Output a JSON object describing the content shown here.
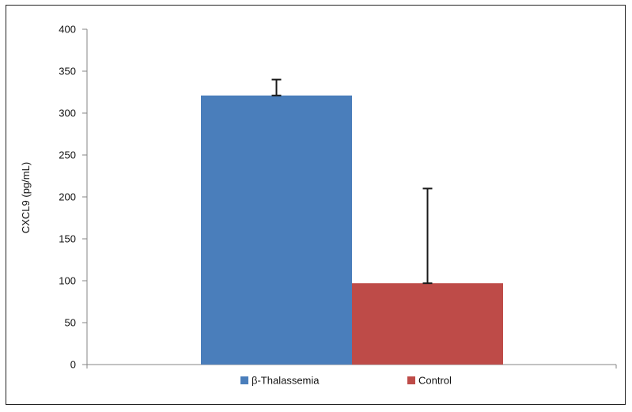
{
  "chart_data": {
    "type": "bar",
    "title": "",
    "xlabel": "",
    "ylabel": "CXCL9 (pg/mL)",
    "ylim": [
      0,
      400
    ],
    "yticks": [
      0,
      50,
      100,
      150,
      200,
      250,
      300,
      350,
      400
    ],
    "series": [
      {
        "name": "β-Thalassemia",
        "color": "#4a7ebb",
        "values": [
          321
        ],
        "error": {
          "lower": 0,
          "upper": 19
        }
      },
      {
        "name": "Control",
        "color": "#be4b48",
        "values": [
          97
        ],
        "error": {
          "lower": 0,
          "upper": 113
        }
      }
    ],
    "legend": {
      "placement": "bottom-center",
      "entries": [
        "β-Thalassemia",
        "Control"
      ]
    },
    "grid": false
  }
}
